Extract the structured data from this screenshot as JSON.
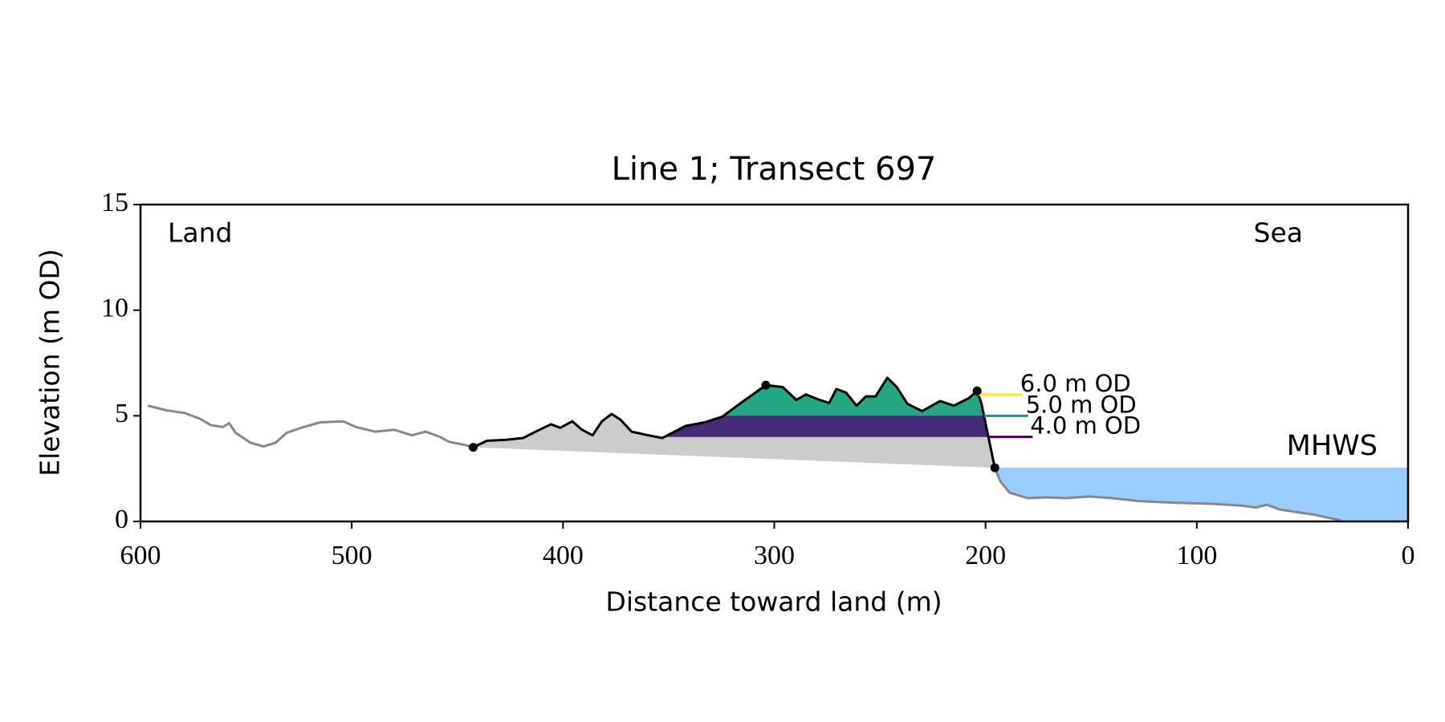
{
  "chart_data": {
    "type": "profile",
    "title": "Line 1; Transect 697",
    "x_label": "Distance toward land (m)",
    "y_label": "Elevation (m OD)",
    "xlim": [
      600,
      0
    ],
    "ylim": [
      0,
      15
    ],
    "xticks": [
      600,
      500,
      400,
      300,
      200,
      100,
      0
    ],
    "yticks": [
      0,
      5,
      10,
      15
    ],
    "annotations": {
      "land": "Land",
      "sea": "Sea"
    },
    "series": [
      {
        "name": "landward",
        "color": "#888888",
        "x": [
          596.5,
          587.7,
          579,
          572,
          566.7,
          561,
          558,
          555,
          548,
          541.7,
          536,
          530.7,
          524,
          515,
          504,
          498,
          489,
          480,
          471.5,
          465,
          458,
          454,
          447.4,
          442.5
        ],
        "values": [
          5.48,
          5.26,
          5.13,
          4.87,
          4.56,
          4.47,
          4.65,
          4.2,
          3.73,
          3.55,
          3.73,
          4.2,
          4.43,
          4.69,
          4.74,
          4.47,
          4.25,
          4.34,
          4.08,
          4.25,
          3.99,
          3.77,
          3.64,
          3.51
        ]
      },
      {
        "name": "dune",
        "color": "#000000",
        "fill_color": "#cccccc",
        "x": [
          442.5,
          436,
          427.6,
          418.9,
          412,
          405.7,
          401.3,
          395.6,
          391,
          386,
          381.6,
          377,
          372.8,
          367.5,
          359.6,
          353,
          342,
          333,
          324.6,
          315.8,
          304,
          296,
          289.5,
          285,
          278.5,
          274,
          270.6,
          266,
          261,
          256.6,
          252,
          246.5,
          242,
          237,
          230,
          221.5,
          215,
          208,
          204,
          202,
          195.6
        ],
        "values": [
          3.51,
          3.82,
          3.86,
          3.95,
          4.3,
          4.6,
          4.43,
          4.74,
          4.34,
          4.08,
          4.74,
          5.09,
          4.82,
          4.25,
          4.08,
          3.95,
          4.52,
          4.69,
          4.96,
          5.61,
          6.45,
          6.36,
          5.75,
          6.01,
          5.75,
          5.61,
          6.27,
          6.1,
          5.48,
          5.92,
          5.92,
          6.8,
          6.36,
          5.57,
          5.22,
          5.7,
          5.48,
          5.83,
          6.18,
          5.61,
          2.54
        ]
      },
      {
        "name": "seaward",
        "color": "#888888",
        "x": [
          195.6,
          193,
          188.6,
          180,
          171,
          162,
          151,
          140,
          127,
          109.6,
          92,
          79,
          72,
          66.7,
          61,
          52.6,
          44,
          31.6
        ],
        "values": [
          2.54,
          1.89,
          1.36,
          1.1,
          1.14,
          1.1,
          1.18,
          1.1,
          0.96,
          0.88,
          0.83,
          0.75,
          0.66,
          0.79,
          0.57,
          0.44,
          0.31,
          0.04
        ]
      }
    ],
    "markers": {
      "color": "#000000",
      "x": [
        442.5,
        304,
        204,
        195.6
      ],
      "values": [
        3.51,
        6.45,
        6.18,
        2.54
      ]
    },
    "levels": [
      {
        "value": 4,
        "label": "4.0 m OD",
        "color": "#440154",
        "fill_color": "#472c7b"
      },
      {
        "value": 5,
        "label": "5.0 m OD",
        "color": "#21918c",
        "fill_color": "#22a884"
      },
      {
        "value": 6,
        "label": "6.0 m OD",
        "color": "#fde725"
      }
    ],
    "mhws": {
      "value": 2.55,
      "label": "MHWS",
      "color": "#6699cc",
      "fill_color": "#99ccff"
    }
  }
}
